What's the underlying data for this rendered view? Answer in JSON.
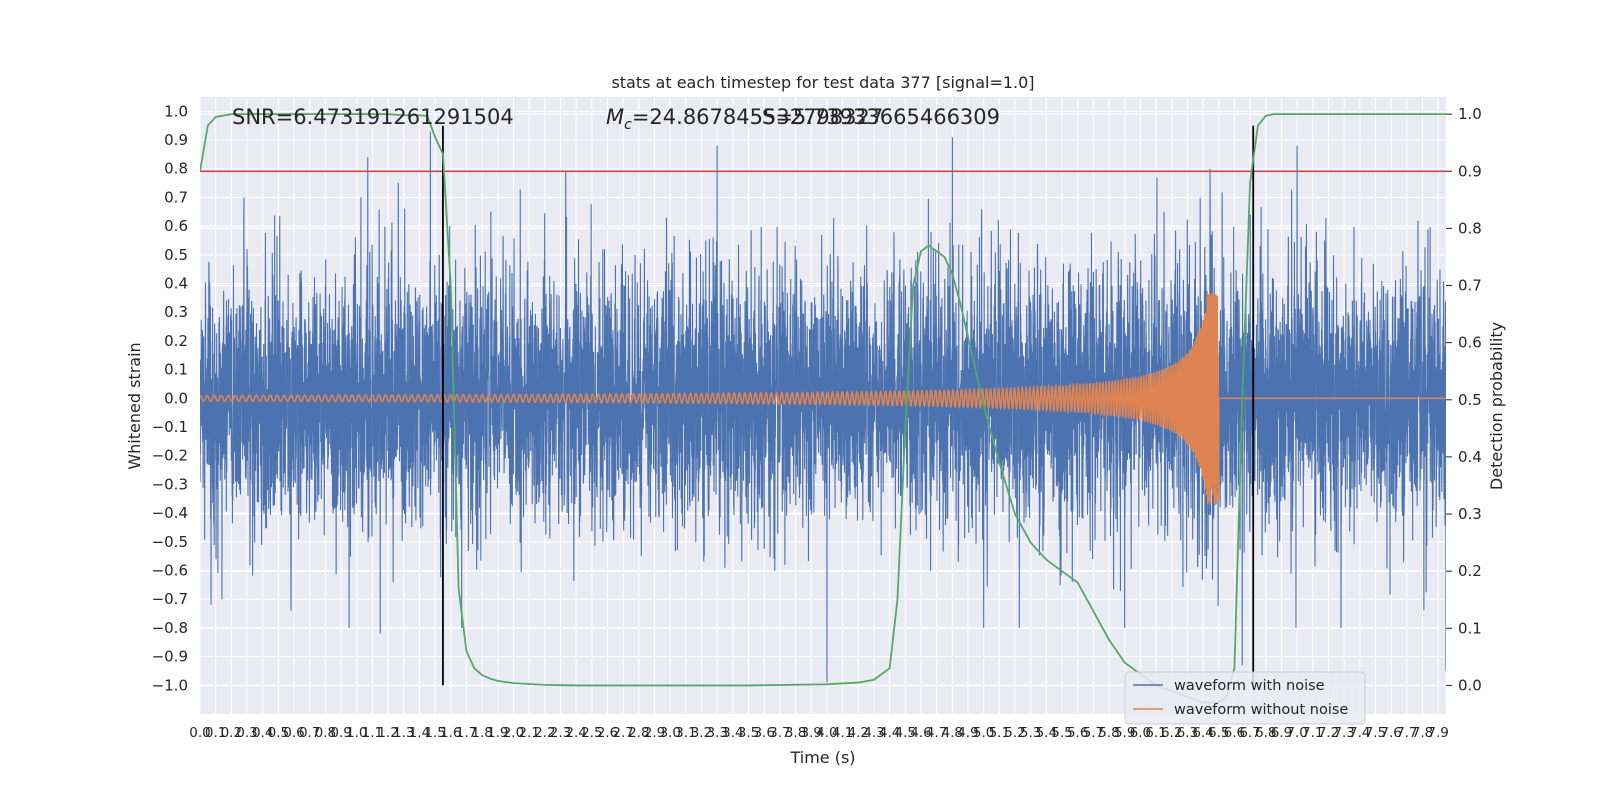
{
  "chart_data": {
    "type": "line",
    "title": "stats at each timestep for test data 377 [signal=1.0]",
    "xlabel": "Time (s)",
    "ylabel": "Whitened strain",
    "y2label": "Detection probability",
    "xlim": [
      0.0,
      7.95
    ],
    "ylim": [
      -1.1,
      1.05
    ],
    "y2lim": [
      -0.05,
      1.03
    ],
    "x_ticks": [
      0.0,
      0.1,
      0.2,
      0.3,
      0.4,
      0.5,
      0.6,
      0.7,
      0.8,
      0.9,
      1.0,
      1.1,
      1.2,
      1.3,
      1.4,
      1.5,
      1.6,
      1.7,
      1.8,
      1.9,
      2.0,
      2.1,
      2.2,
      2.3,
      2.4,
      2.5,
      2.6,
      2.7,
      2.8,
      2.9,
      3.0,
      3.1,
      3.2,
      3.3,
      3.4,
      3.5,
      3.6,
      3.7,
      3.8,
      3.9,
      4.0,
      4.1,
      4.2,
      4.3,
      4.4,
      4.5,
      4.6,
      4.7,
      4.8,
      4.9,
      5.0,
      5.1,
      5.2,
      5.3,
      5.4,
      5.5,
      5.6,
      5.7,
      5.8,
      5.9,
      6.0,
      6.1,
      6.2,
      6.3,
      6.4,
      6.5,
      6.6,
      6.7,
      6.8,
      6.9,
      7.0,
      7.1,
      7.2,
      7.3,
      7.4,
      7.5,
      7.6,
      7.7,
      7.8,
      7.9
    ],
    "y_ticks": [
      -1.0,
      -0.9,
      -0.8,
      -0.7,
      -0.6,
      -0.5,
      -0.4,
      -0.3,
      -0.2,
      -0.1,
      0.0,
      0.1,
      0.2,
      0.3,
      0.4,
      0.5,
      0.6,
      0.7,
      0.8,
      0.9,
      1.0
    ],
    "y2_ticks": [
      0.0,
      0.1,
      0.2,
      0.3,
      0.4,
      0.5,
      0.6,
      0.7,
      0.8,
      0.9,
      1.0
    ],
    "annotations": {
      "snr": "SNR=6.473191261291504",
      "mc_symbol": "M",
      "mc_subscript": "c",
      "mc_value": "=24.867845532798327",
      "s_value": "S=5.73933665466309"
    },
    "threshold": {
      "value": 0.9,
      "axis": "right",
      "color": "#c44e52"
    },
    "vertical_markers": {
      "x": [
        1.55,
        6.72
      ],
      "ymin": -1.0,
      "ymax": 0.95,
      "color": "#000000"
    },
    "series": [
      {
        "name": "waveform with noise",
        "axis": "left",
        "color": "#4c72b0",
        "description_sigma": 0.22,
        "peaks": [
          {
            "x": 0.14,
            "y": -0.7
          },
          {
            "x": 0.28,
            "y": 0.7
          },
          {
            "x": 0.58,
            "y": -0.74
          },
          {
            "x": 1.07,
            "y": 0.84
          },
          {
            "x": 1.15,
            "y": -0.82
          },
          {
            "x": 1.47,
            "y": 0.93
          },
          {
            "x": 1.67,
            "y": -0.8
          },
          {
            "x": 3.3,
            "y": 0.88
          },
          {
            "x": 4.0,
            "y": -0.99
          },
          {
            "x": 4.8,
            "y": 0.91
          },
          {
            "x": 5.0,
            "y": -0.8
          },
          {
            "x": 5.9,
            "y": -0.8
          },
          {
            "x": 6.65,
            "y": -0.93
          },
          {
            "x": 7.0,
            "y": 0.88
          },
          {
            "x": 7.28,
            "y": -0.8
          },
          {
            "x": 7.95,
            "y": -0.95
          }
        ]
      },
      {
        "name": "waveform without noise",
        "axis": "left",
        "color": "#dd8452",
        "merger_time": 6.5,
        "initial_amplitude": 0.01,
        "peak_amplitude": 0.37
      },
      {
        "name": "",
        "axis": "right",
        "color": "#55a868",
        "x": [
          0.0,
          0.05,
          0.1,
          0.2,
          0.3,
          0.5,
          0.8,
          1.0,
          1.2,
          1.3,
          1.4,
          1.45,
          1.5,
          1.55,
          1.6,
          1.65,
          1.7,
          1.75,
          1.8,
          1.85,
          1.9,
          2.0,
          2.2,
          2.4,
          2.6,
          3.0,
          3.5,
          4.0,
          4.2,
          4.3,
          4.4,
          4.45,
          4.5,
          4.55,
          4.6,
          4.65,
          4.7,
          4.75,
          4.8,
          4.85,
          4.9,
          5.0,
          5.1,
          5.2,
          5.3,
          5.4,
          5.5,
          5.6,
          5.7,
          5.8,
          5.9,
          6.0,
          6.1,
          6.2,
          6.3,
          6.4,
          6.5,
          6.55,
          6.6,
          6.65,
          6.7,
          6.75,
          6.8,
          6.85,
          6.9,
          7.0,
          7.5,
          7.95
        ],
        "y": [
          0.9,
          0.98,
          0.995,
          1.0,
          1.0,
          1.0,
          1.0,
          1.0,
          1.0,
          0.998,
          0.998,
          0.997,
          0.96,
          0.93,
          0.7,
          0.17,
          0.06,
          0.03,
          0.018,
          0.012,
          0.008,
          0.004,
          0.001,
          0.0,
          0.0,
          0.0,
          0.0,
          0.002,
          0.005,
          0.01,
          0.03,
          0.15,
          0.45,
          0.7,
          0.76,
          0.77,
          0.76,
          0.75,
          0.72,
          0.67,
          0.61,
          0.49,
          0.39,
          0.3,
          0.25,
          0.22,
          0.2,
          0.18,
          0.13,
          0.08,
          0.04,
          0.02,
          0.0,
          -0.01,
          -0.02,
          -0.03,
          -0.03,
          -0.02,
          0.03,
          0.5,
          0.88,
          0.98,
          0.997,
          1.0,
          1.0,
          1.0,
          1.0,
          1.0
        ]
      }
    ],
    "legend": {
      "position": "lower-right",
      "entries": [
        "waveform with noise",
        "waveform without noise"
      ]
    },
    "grid": true,
    "colors": {
      "plot_background": "#eaeaf2",
      "grid": "#ffffff"
    }
  }
}
